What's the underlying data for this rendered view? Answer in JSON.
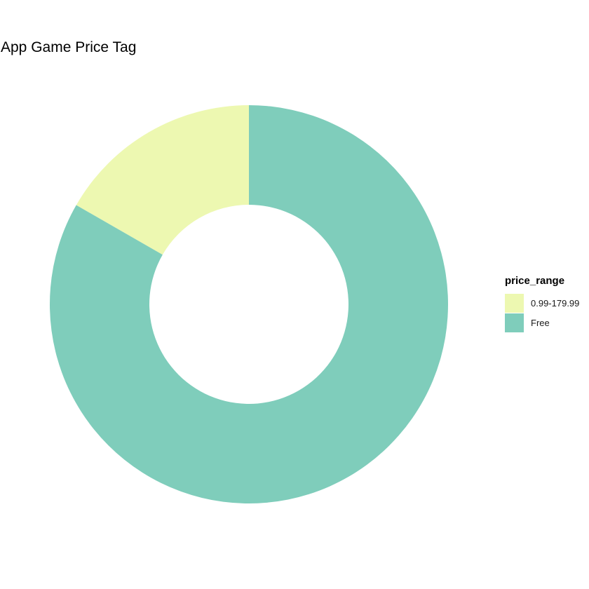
{
  "chart_data": {
    "type": "pie",
    "donut": true,
    "title": "App Game Price Tag",
    "legend_title": "price_range",
    "legend_position": "right",
    "slices": [
      {
        "label": "0.99-179.99",
        "value": 0.167,
        "color": "#EDF8B1"
      },
      {
        "label": "Free",
        "value": 0.833,
        "color": "#7FCDBB"
      }
    ]
  }
}
